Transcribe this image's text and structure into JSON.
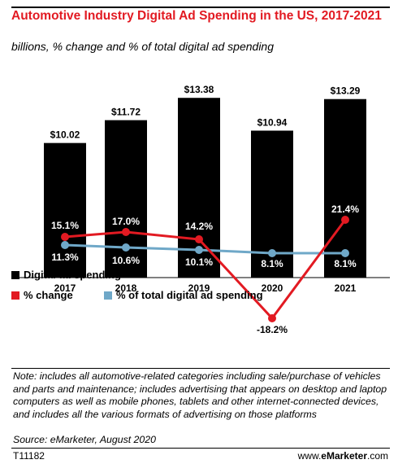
{
  "title": "Automotive Industry Digital Ad Spending in the US, 2017-2021",
  "subtitle": "billions, % change and % of total digital ad spending",
  "legend": {
    "bars": "Digital ad spending",
    "change": "% change",
    "share": "% of total digital ad spending"
  },
  "note": "Note: includes all automotive-related categories including sale/purchase of vehicles and parts and maintenance; includes advertising that appears on desktop and laptop computers as well as mobile phones, tablets and other internet-connected devices, and includes all the various formats of advertising on those platforms",
  "source": "Source: eMarketer, August 2020",
  "code": "T11182",
  "brand": {
    "prefix": "www.",
    "name": "eMarketer",
    "suffix": ".com"
  },
  "colors": {
    "title": "#e21a22",
    "bars": "#000000",
    "change": "#e21a22",
    "share": "#6fa8c8"
  },
  "chart_data": {
    "type": "bar",
    "categories": [
      "2017",
      "2018",
      "2019",
      "2020",
      "2021"
    ],
    "series": [
      {
        "name": "Digital ad spending",
        "type": "bar",
        "values": [
          10.02,
          11.72,
          13.38,
          10.94,
          13.29
        ],
        "labels": [
          "$10.02",
          "$11.72",
          "$13.38",
          "$10.94",
          "$13.29"
        ]
      },
      {
        "name": "% change",
        "type": "line",
        "values": [
          15.1,
          17.0,
          14.2,
          -18.2,
          21.4
        ],
        "labels": [
          "15.1%",
          "17.0%",
          "14.2%",
          "-18.2%",
          "21.4%"
        ]
      },
      {
        "name": "% of total digital ad spending",
        "type": "line",
        "values": [
          11.3,
          10.6,
          10.1,
          8.1,
          8.1
        ],
        "labels": [
          "11.3%",
          "10.6%",
          "10.1%",
          "8.1%",
          "8.1%"
        ]
      }
    ],
    "legend_position": "bottom-left",
    "grid": false
  }
}
